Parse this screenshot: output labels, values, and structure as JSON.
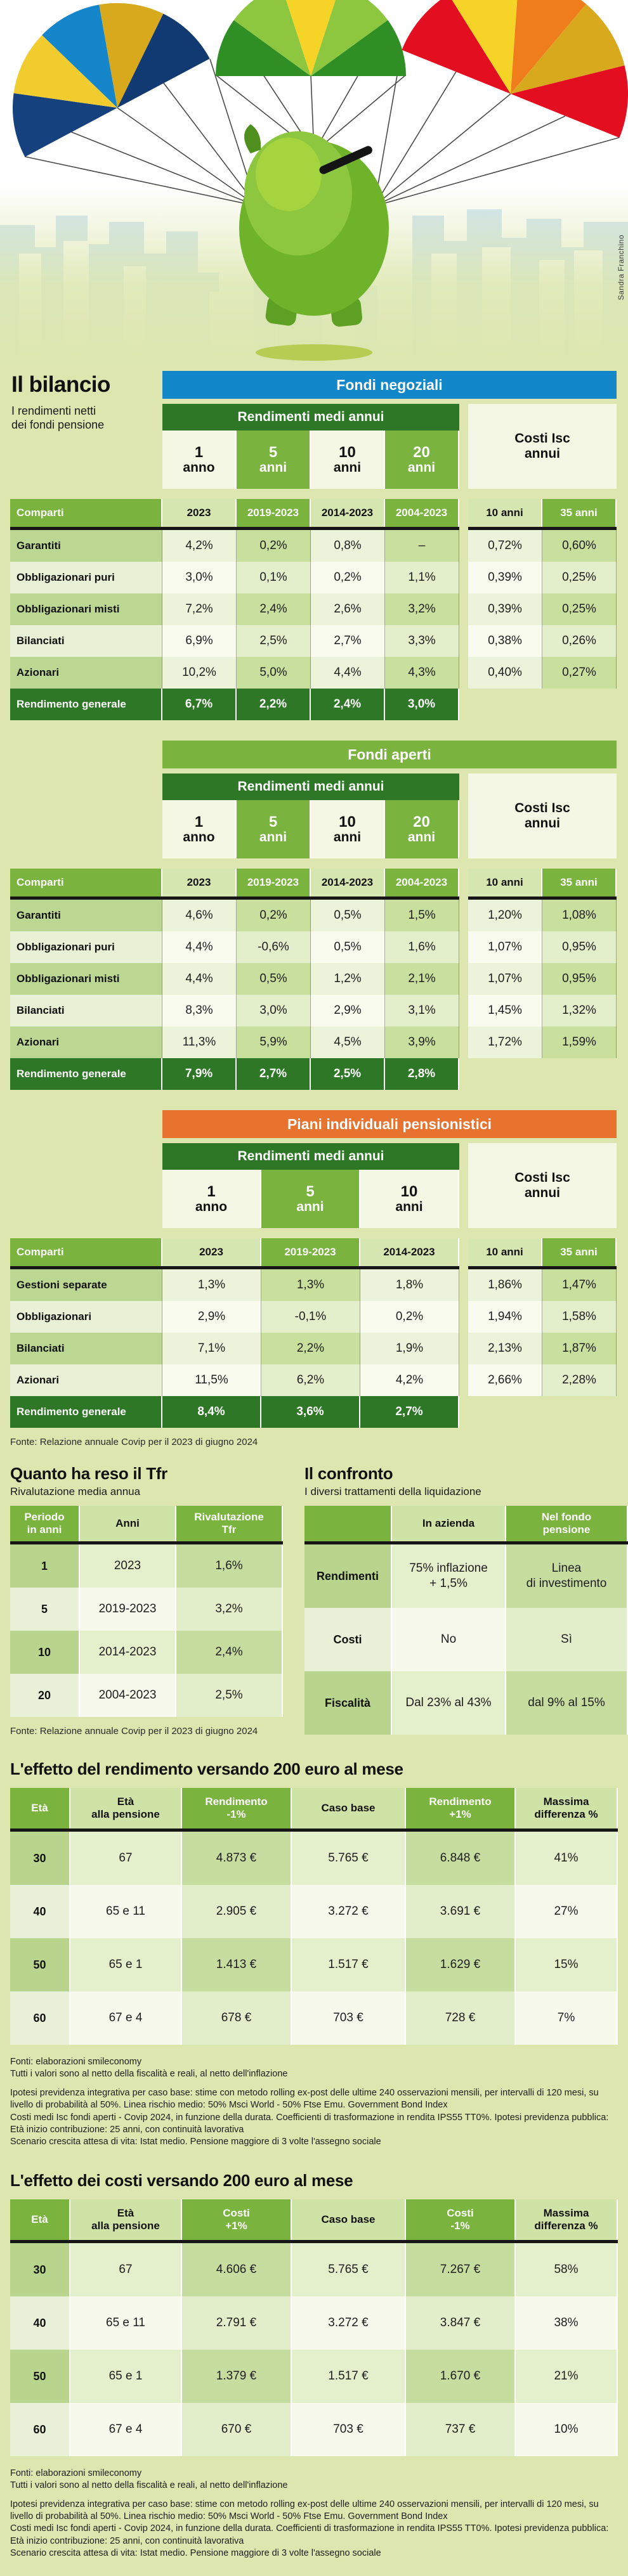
{
  "illustration": {
    "credit": "Sandra Franchino"
  },
  "intro": {
    "title": "Il bilancio",
    "subtitle": "I rendimenti netti\ndei fondi pensione"
  },
  "colors": {
    "blue": "#1287c9",
    "green": "#7ab33d",
    "dark_green": "#2e7726",
    "orange": "#e8732e",
    "page_bg": "#dce6ae"
  },
  "fund_tables": [
    {
      "kind": "fund",
      "title": "Fondi negoziali",
      "accent": "#1287c9",
      "band": "Rendimenti medi annui",
      "costs_title": "Costi Isc\nannui",
      "corner": "Comparti",
      "cols": [
        {
          "num": "1",
          "unit": "anno",
          "period": "2023",
          "green": false
        },
        {
          "num": "5",
          "unit": "anni",
          "period": "2019-2023",
          "green": true
        },
        {
          "num": "10",
          "unit": "anni",
          "period": "2014-2023",
          "green": false
        },
        {
          "num": "20",
          "unit": "anni",
          "period": "2004-2023",
          "green": true
        }
      ],
      "cost_cols": [
        {
          "label": "10 anni",
          "green": false
        },
        {
          "label": "35 anni",
          "green": true
        }
      ],
      "rows": [
        {
          "label": "Garantiti",
          "values": [
            "4,2%",
            "0,2%",
            "0,8%",
            "–"
          ],
          "costs": [
            "0,72%",
            "0,60%"
          ]
        },
        {
          "label": "Obbligazionari puri",
          "values": [
            "3,0%",
            "0,1%",
            "0,2%",
            "1,1%"
          ],
          "costs": [
            "0,39%",
            "0,25%"
          ]
        },
        {
          "label": "Obbligazionari misti",
          "values": [
            "7,2%",
            "2,4%",
            "2,6%",
            "3,2%"
          ],
          "costs": [
            "0,39%",
            "0,25%"
          ]
        },
        {
          "label": "Bilanciati",
          "values": [
            "6,9%",
            "2,5%",
            "2,7%",
            "3,3%"
          ],
          "costs": [
            "0,38%",
            "0,26%"
          ]
        },
        {
          "label": "Azionari",
          "values": [
            "10,2%",
            "5,0%",
            "4,4%",
            "4,3%"
          ],
          "costs": [
            "0,40%",
            "0,27%"
          ]
        }
      ],
      "total": {
        "label": "Rendimento generale",
        "values": [
          "6,7%",
          "2,2%",
          "2,4%",
          "3,0%"
        ]
      }
    },
    {
      "kind": "fund",
      "title": "Fondi aperti",
      "accent": "#7ab33d",
      "band": "Rendimenti medi annui",
      "costs_title": "Costi Isc\nannui",
      "corner": "Comparti",
      "cols": [
        {
          "num": "1",
          "unit": "anno",
          "period": "2023",
          "green": false
        },
        {
          "num": "5",
          "unit": "anni",
          "period": "2019-2023",
          "green": true
        },
        {
          "num": "10",
          "unit": "anni",
          "period": "2014-2023",
          "green": false
        },
        {
          "num": "20",
          "unit": "anni",
          "period": "2004-2023",
          "green": true
        }
      ],
      "cost_cols": [
        {
          "label": "10 anni",
          "green": false
        },
        {
          "label": "35 anni",
          "green": true
        }
      ],
      "rows": [
        {
          "label": "Garantiti",
          "values": [
            "4,6%",
            "0,2%",
            "0,5%",
            "1,5%"
          ],
          "costs": [
            "1,20%",
            "1,08%"
          ]
        },
        {
          "label": "Obbligazionari puri",
          "values": [
            "4,4%",
            "-0,6%",
            "0,5%",
            "1,6%"
          ],
          "costs": [
            "1,07%",
            "0,95%"
          ]
        },
        {
          "label": "Obbligazionari misti",
          "values": [
            "4,4%",
            "0,5%",
            "1,2%",
            "2,1%"
          ],
          "costs": [
            "1,07%",
            "0,95%"
          ]
        },
        {
          "label": "Bilanciati",
          "values": [
            "8,3%",
            "3,0%",
            "2,9%",
            "3,1%"
          ],
          "costs": [
            "1,45%",
            "1,32%"
          ]
        },
        {
          "label": "Azionari",
          "values": [
            "11,3%",
            "5,9%",
            "4,5%",
            "3,9%"
          ],
          "costs": [
            "1,72%",
            "1,59%"
          ]
        }
      ],
      "total": {
        "label": "Rendimento generale",
        "values": [
          "7,9%",
          "2,7%",
          "2,5%",
          "2,8%"
        ]
      }
    },
    {
      "kind": "fund",
      "title": "Piani individuali pensionistici",
      "accent": "#e8732e",
      "band": "Rendimenti medi annui",
      "costs_title": "Costi Isc\nannui",
      "corner": "Comparti",
      "cols": [
        {
          "num": "1",
          "unit": "anno",
          "period": "2023",
          "green": false
        },
        {
          "num": "5",
          "unit": "anni",
          "period": "2019-2023",
          "green": true
        },
        {
          "num": "10",
          "unit": "anni",
          "period": "2014-2023",
          "green": false
        }
      ],
      "cost_cols": [
        {
          "label": "10 anni",
          "green": false
        },
        {
          "label": "35 anni",
          "green": true
        }
      ],
      "rows": [
        {
          "label": "Gestioni separate",
          "values": [
            "1,3%",
            "1,3%",
            "1,8%"
          ],
          "costs": [
            "1,86%",
            "1,47%"
          ]
        },
        {
          "label": "Obbligazionari",
          "values": [
            "2,9%",
            "-0,1%",
            "0,2%"
          ],
          "costs": [
            "1,94%",
            "1,58%"
          ]
        },
        {
          "label": "Bilanciati",
          "values": [
            "7,1%",
            "2,2%",
            "1,9%"
          ],
          "costs": [
            "2,13%",
            "1,87%"
          ]
        },
        {
          "label": "Azionari",
          "values": [
            "11,5%",
            "6,2%",
            "4,2%"
          ],
          "costs": [
            "2,66%",
            "2,28%"
          ]
        }
      ],
      "total": {
        "label": "Rendimento generale",
        "values": [
          "8,4%",
          "3,6%",
          "2,7%"
        ]
      }
    }
  ],
  "fonte_covip": "Fonte: Relazione annuale Covip per il 2023 di giugno 2024",
  "tfr": {
    "heading": "Quanto ha reso il Tfr",
    "subheading": "Rivalutazione media annua",
    "table": {
      "headers": [
        {
          "text": "Periodo\nin anni",
          "green": true
        },
        {
          "text": "Anni",
          "green": false
        },
        {
          "text": "Rivalutazione\nTfr",
          "green": true
        }
      ],
      "rows": [
        [
          "1",
          "2023",
          "1,6%"
        ],
        [
          "5",
          "2019-2023",
          "3,2%"
        ],
        [
          "10",
          "2014-2023",
          "2,4%"
        ],
        [
          "20",
          "2004-2023",
          "2,5%"
        ]
      ]
    }
  },
  "confronto": {
    "heading": "Il confronto",
    "subheading": "I diversi trattamenti della liquidazione",
    "table": {
      "headers": [
        {
          "text": "",
          "green": true
        },
        {
          "text": "In azienda",
          "green": false
        },
        {
          "text": "Nel fondo\npensione",
          "green": true
        }
      ],
      "rows": [
        [
          "Rendimenti",
          "75% inflazione\n+ 1,5%",
          "Linea\ndi investimento"
        ],
        [
          "Costi",
          "No",
          "Sì"
        ],
        [
          "Fiscalità",
          "Dal 23% al 43%",
          "dal 9% al 15%"
        ]
      ]
    }
  },
  "effetto_rendimento": {
    "heading": "L'effetto del rendimento versando 200 euro al mese",
    "table": {
      "headers": [
        {
          "text": "Età",
          "green": true
        },
        {
          "text": "Età\nalla pensione",
          "green": false
        },
        {
          "text": "Rendimento\n-1%",
          "green": true
        },
        {
          "text": "Caso base",
          "green": false
        },
        {
          "text": "Rendimento\n+1%",
          "green": true
        },
        {
          "text": "Massima\ndifferenza %",
          "green": false
        }
      ],
      "rows": [
        [
          "30",
          "67",
          "4.873 €",
          "5.765 €",
          "6.848 €",
          "41%"
        ],
        [
          "40",
          "65 e 11",
          "2.905 €",
          "3.272 €",
          "3.691 €",
          "27%"
        ],
        [
          "50",
          "65 e 1",
          "1.413 €",
          "1.517 €",
          "1.629 €",
          "15%"
        ],
        [
          "60",
          "67 e 4",
          "678 €",
          "703 €",
          "728 €",
          "7%"
        ]
      ]
    }
  },
  "effetto_costi": {
    "heading": "L'effetto dei costi versando 200 euro al mese",
    "table": {
      "headers": [
        {
          "text": "Età",
          "green": true
        },
        {
          "text": "Età\nalla pensione",
          "green": false
        },
        {
          "text": "Costi\n+1%",
          "green": true
        },
        {
          "text": "Caso base",
          "green": false
        },
        {
          "text": "Costi\n-1%",
          "green": true
        },
        {
          "text": "Massima\ndifferenza %",
          "green": false
        }
      ],
      "rows": [
        [
          "30",
          "67",
          "4.606 €",
          "5.765 €",
          "7.267 €",
          "58%"
        ],
        [
          "40",
          "65 e 11",
          "2.791 €",
          "3.272 €",
          "3.847 €",
          "38%"
        ],
        [
          "50",
          "65 e 1",
          "1.379 €",
          "1.517 €",
          "1.670 €",
          "21%"
        ],
        [
          "60",
          "67 e 4",
          "670 €",
          "703 €",
          "737 €",
          "10%"
        ]
      ]
    }
  },
  "footnotes": {
    "fonti": "Fonti: elaborazioni smileconomy",
    "netto": "Tutti i valori sono al netto della fiscalità e reali, al netto dell'inflazione",
    "ipotesi": "Ipotesi previdenza integrativa per caso base: stime con metodo rolling ex-post delle ultime 240 osservazioni mensili, per intervalli di 120 mesi, su livello di probabilità al 50%. Linea rischio medio: 50% Msci World - 50% Ftse Emu. Government Bond Index",
    "costi_medi": "Costi medi Isc fondi aperti - Covip 2024, in funzione della durata. Coefficienti di trasformazione in rendita IPS55 TT0%. Ipotesi previdenza pubblica: Età inizio contribuzione: 25 anni, con continuità lavorativa",
    "scenario": "Scenario crescita attesa di vita: Istat medio. Pensione maggiore di 3 volte l'assegno sociale"
  }
}
